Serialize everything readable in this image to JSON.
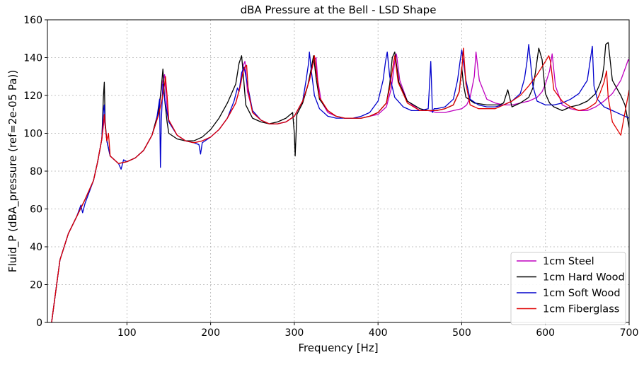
{
  "chart_data": {
    "type": "line",
    "title": "dBA Pressure at the Bell - LSD Shape",
    "xlabel": "Frequency [Hz]",
    "ylabel": "Fluid_P (dBA_pressure (ref=2e-05 Pa))",
    "xlim": [
      5,
      700
    ],
    "ylim": [
      0,
      160
    ],
    "xticks": [
      100,
      200,
      300,
      400,
      500,
      600,
      700
    ],
    "yticks": [
      0,
      20,
      40,
      60,
      80,
      100,
      120,
      140,
      160
    ],
    "grid": true,
    "legend_position": "lower-right",
    "series": [
      {
        "name": "1cm Steel",
        "color": "#bf00bf",
        "x": [
          10,
          20,
          30,
          40,
          50,
          60,
          65,
          70,
          73,
          74,
          76,
          80,
          90,
          100,
          110,
          120,
          130,
          138,
          142,
          145,
          147,
          150,
          160,
          170,
          180,
          190,
          200,
          210,
          220,
          230,
          236,
          239,
          241,
          244,
          250,
          260,
          270,
          280,
          290,
          300,
          310,
          318,
          323,
          326,
          328,
          332,
          340,
          350,
          360,
          370,
          380,
          390,
          400,
          410,
          416,
          420,
          422,
          426,
          435,
          450,
          460,
          470,
          480,
          490,
          500,
          506,
          510,
          515,
          517,
          521,
          530,
          540,
          550,
          560,
          570,
          580,
          590,
          596,
          600,
          605,
          608,
          612,
          620,
          630,
          640,
          650,
          660,
          670,
          680,
          690,
          695,
          699,
          700
        ],
        "y": [
          0,
          33,
          47,
          56,
          65,
          75,
          85,
          97,
          108,
          104,
          96,
          88,
          84,
          85,
          87,
          91,
          99,
          112,
          126,
          131,
          118,
          107,
          99,
          96,
          95,
          96,
          98,
          102,
          108,
          116,
          126,
          136,
          138,
          122,
          112,
          107,
          105,
          105,
          106,
          109,
          117,
          128,
          138,
          140,
          128,
          117,
          111,
          109,
          108,
          108,
          108,
          109,
          110,
          114,
          124,
          138,
          142,
          128,
          117,
          112,
          112,
          111,
          111,
          112,
          113,
          115,
          119,
          130,
          143,
          128,
          118,
          116,
          115,
          115,
          116,
          117,
          119,
          122,
          126,
          133,
          142,
          125,
          115,
          113,
          112,
          112,
          114,
          117,
          121,
          128,
          134,
          139,
          138
        ]
      },
      {
        "name": "1cm Hard Wood",
        "color": "#000000",
        "x": [
          10,
          20,
          30,
          40,
          50,
          60,
          65,
          70,
          72,
          73,
          74,
          76,
          80,
          90,
          100,
          110,
          120,
          130,
          138,
          141,
          143,
          145,
          148,
          150,
          160,
          170,
          180,
          190,
          200,
          210,
          220,
          230,
          234,
          237,
          239,
          242,
          250,
          260,
          270,
          280,
          290,
          298,
          300,
          301,
          303,
          310,
          316,
          320,
          323,
          326,
          330,
          340,
          350,
          360,
          370,
          380,
          390,
          400,
          410,
          414,
          417,
          420,
          425,
          435,
          450,
          460,
          470,
          480,
          490,
          497,
          500,
          502,
          505,
          515,
          530,
          545,
          550,
          555,
          560,
          570,
          580,
          585,
          588,
          592,
          596,
          600,
          605,
          610,
          620,
          630,
          640,
          650,
          660,
          665,
          668,
          670,
          672,
          675,
          680,
          690,
          695,
          698,
          700
        ],
        "y": [
          0,
          33,
          47,
          56,
          65,
          75,
          85,
          97,
          120,
          127,
          106,
          96,
          88,
          84,
          85,
          87,
          91,
          99,
          112,
          124,
          134,
          118,
          106,
          100,
          97,
          96,
          96,
          98,
          102,
          108,
          116,
          126,
          137,
          141,
          131,
          115,
          108,
          106,
          105,
          106,
          108,
          111,
          100,
          88,
          110,
          116,
          125,
          134,
          141,
          129,
          118,
          112,
          109,
          108,
          108,
          108,
          109,
          111,
          116,
          126,
          140,
          143,
          127,
          117,
          113,
          112,
          112,
          113,
          115,
          122,
          135,
          126,
          119,
          116,
          115,
          115,
          116,
          123,
          114,
          116,
          119,
          124,
          132,
          145,
          139,
          121,
          116,
          114,
          112,
          114,
          115,
          117,
          121,
          126,
          130,
          136,
          147,
          148,
          128,
          120,
          115,
          108,
          103
        ]
      },
      {
        "name": "1cm Soft Wood",
        "color": "#0000cc",
        "x": [
          10,
          20,
          30,
          40,
          45,
          47,
          50,
          60,
          65,
          70,
          72,
          73,
          74,
          76,
          80,
          90,
          93,
          96,
          100,
          110,
          120,
          130,
          135,
          139,
          140,
          141,
          143,
          145,
          150,
          160,
          170,
          180,
          186,
          188,
          190,
          200,
          210,
          220,
          228,
          232,
          234,
          237,
          240,
          250,
          260,
          270,
          280,
          290,
          300,
          310,
          314,
          317,
          318,
          320,
          324,
          330,
          340,
          350,
          360,
          370,
          380,
          390,
          400,
          406,
          409,
          411,
          414,
          420,
          430,
          440,
          450,
          460,
          463,
          465,
          467,
          470,
          480,
          490,
          495,
          498,
          500,
          505,
          510,
          520,
          530,
          540,
          550,
          560,
          570,
          575,
          578,
          580,
          585,
          590,
          600,
          610,
          620,
          630,
          640,
          650,
          653,
          656,
          658,
          662,
          670,
          680,
          690,
          700
        ],
        "y": [
          0,
          33,
          47,
          56,
          62,
          58,
          63,
          75,
          85,
          97,
          112,
          115,
          104,
          96,
          88,
          84,
          81,
          86,
          85,
          87,
          91,
          99,
          106,
          118,
          82,
          106,
          126,
          118,
          106,
          99,
          96,
          95,
          94,
          89,
          95,
          98,
          102,
          108,
          117,
          124,
          122,
          132,
          135,
          112,
          107,
          105,
          105,
          106,
          109,
          117,
          128,
          137,
          143,
          134,
          120,
          113,
          109,
          108,
          108,
          108,
          109,
          111,
          117,
          128,
          138,
          143,
          130,
          119,
          114,
          112,
          112,
          113,
          138,
          111,
          113,
          113,
          114,
          118,
          128,
          138,
          144,
          128,
          118,
          115,
          114,
          114,
          115,
          117,
          121,
          129,
          138,
          147,
          125,
          117,
          115,
          115,
          116,
          118,
          121,
          128,
          137,
          146,
          125,
          118,
          114,
          112,
          110,
          108
        ]
      },
      {
        "name": "1cm Fiberglass",
        "color": "#e00000",
        "x": [
          10,
          20,
          30,
          40,
          50,
          60,
          65,
          70,
          73,
          74,
          76,
          78,
          80,
          90,
          100,
          110,
          120,
          130,
          138,
          142,
          145,
          146,
          148,
          150,
          160,
          170,
          180,
          190,
          200,
          210,
          220,
          230,
          235,
          239,
          241,
          243,
          245,
          250,
          260,
          270,
          280,
          290,
          300,
          310,
          318,
          322,
          324,
          327,
          330,
          340,
          350,
          360,
          370,
          380,
          390,
          400,
          410,
          414,
          418,
          420,
          424,
          435,
          450,
          460,
          470,
          480,
          490,
          497,
          500,
          502,
          505,
          510,
          520,
          530,
          540,
          550,
          560,
          570,
          580,
          590,
          600,
          604,
          606,
          610,
          620,
          630,
          640,
          650,
          660,
          665,
          670,
          673,
          675,
          680,
          690,
          700
        ],
        "y": [
          0,
          33,
          47,
          56,
          65,
          75,
          85,
          97,
          110,
          104,
          96,
          100,
          88,
          84,
          85,
          87,
          91,
          99,
          110,
          118,
          126,
          130,
          120,
          107,
          99,
          96,
          95,
          96,
          98,
          102,
          108,
          116,
          124,
          133,
          135,
          136,
          122,
          111,
          107,
          105,
          105,
          106,
          109,
          117,
          128,
          136,
          141,
          130,
          119,
          112,
          109,
          108,
          108,
          108,
          109,
          111,
          116,
          124,
          136,
          141,
          127,
          116,
          112,
          112,
          112,
          113,
          115,
          122,
          133,
          145,
          126,
          115,
          113,
          113,
          113,
          115,
          117,
          120,
          125,
          131,
          138,
          141,
          138,
          123,
          117,
          114,
          112,
          113,
          116,
          121,
          127,
          133,
          119,
          106,
          99,
          123
        ]
      }
    ]
  }
}
